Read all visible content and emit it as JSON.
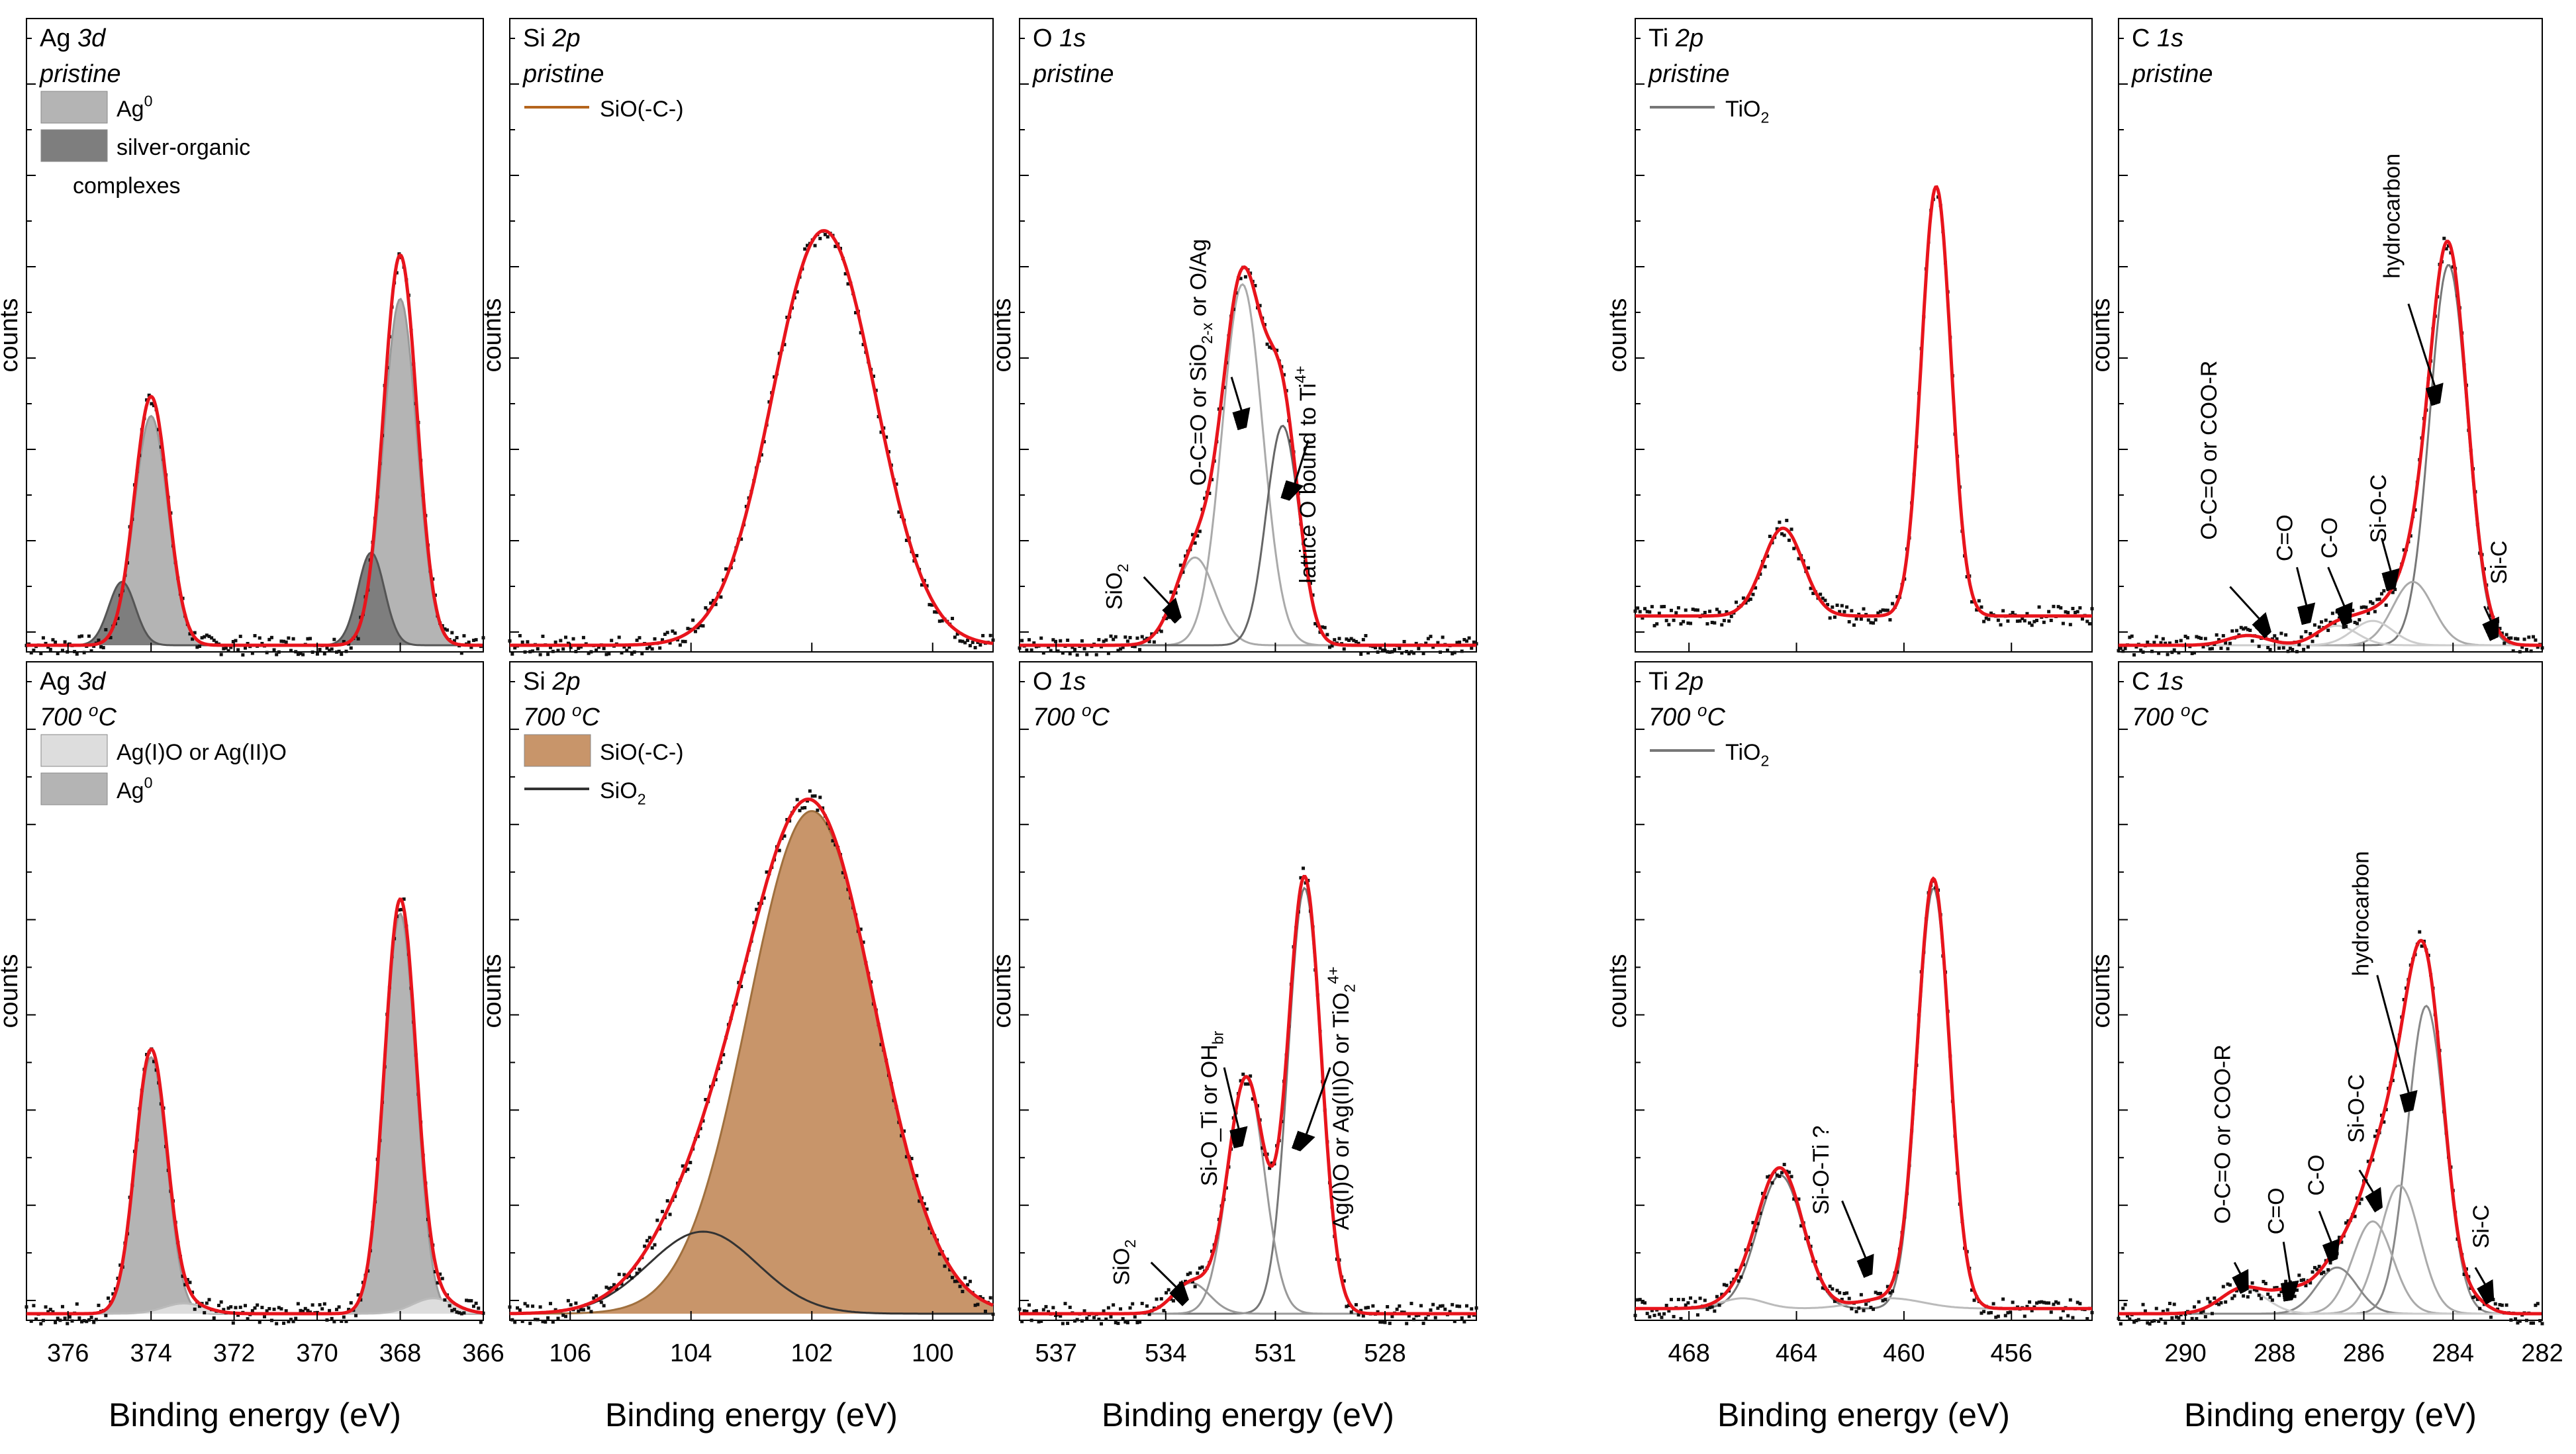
{
  "figure": {
    "x_axis_label": "Binding energy (eV)",
    "y_axis_label": "counts"
  },
  "chart_data": [
    {
      "id": "ag3d-pristine",
      "type": "line",
      "element": "Ag",
      "orbital": "3d",
      "condition": "pristine",
      "xlim": [
        377,
        366
      ],
      "ylim": [
        0,
        100
      ],
      "ticks": [
        "376",
        "374",
        "372",
        "370",
        "368",
        "366"
      ],
      "legend": [
        {
          "label": "Ag",
          "sup": "0",
          "sub": "",
          "rest": "",
          "style": "fill",
          "color": "#b4b4b4"
        },
        {
          "label": "silver-organic",
          "sup": "",
          "sub": "",
          "rest": "",
          "line2": "complexes",
          "style": "fill",
          "color": "#7e7e7e"
        }
      ],
      "envelope": {
        "baseline": 0,
        "peaks": [
          [
            374.0,
            51,
            0.4
          ],
          [
            368.0,
            80,
            0.4
          ]
        ]
      },
      "components": [
        {
          "name": "Ag0",
          "peaks": [
            [
              374.0,
              47,
              0.4
            ],
            [
              368.0,
              71,
              0.4
            ]
          ],
          "fill": "#b4b4b4",
          "stroke": "#999999"
        },
        {
          "name": "silver-organic complexes",
          "peaks": [
            [
              374.7,
              13,
              0.32
            ],
            [
              368.7,
              19,
              0.32
            ]
          ],
          "fill": "#7e7e7e",
          "stroke": "#555555"
        }
      ],
      "annotations": []
    },
    {
      "id": "si2p-pristine",
      "type": "line",
      "element": "Si",
      "orbital": "2p",
      "condition": "pristine",
      "xlim": [
        107,
        99
      ],
      "ylim": [
        0,
        100
      ],
      "ticks": [
        "106",
        "104",
        "102",
        "100"
      ],
      "legend": [
        {
          "label": "SiO(-C-)",
          "sup": "",
          "sub": "",
          "rest": "",
          "style": "line",
          "color": "#b5651d"
        }
      ],
      "envelope": {
        "baseline": 0,
        "peaks": [
          [
            101.8,
            85,
            0.85
          ]
        ]
      },
      "components": [],
      "annotations": []
    },
    {
      "id": "o1s-pristine",
      "type": "line",
      "element": "O",
      "orbital": "1s",
      "condition": "pristine",
      "xlim": [
        538,
        525.5
      ],
      "ylim": [
        0,
        100
      ],
      "ticks": [
        "537",
        "534",
        "531",
        "528"
      ],
      "legend": [],
      "envelope": {
        "baseline": 0,
        "peaks": [
          [
            531.9,
            74,
            0.55
          ],
          [
            533.2,
            18,
            0.55
          ],
          [
            530.8,
            45,
            0.45
          ]
        ]
      },
      "components": [
        {
          "name": "O-C=O",
          "peaks": [
            [
              531.9,
              74,
              0.55
            ]
          ],
          "fill": "none",
          "stroke": "#aaaaaa"
        },
        {
          "name": "SiO2",
          "peaks": [
            [
              533.2,
              18,
              0.55
            ]
          ],
          "fill": "none",
          "stroke": "#aaaaaa"
        },
        {
          "name": "lattice O",
          "peaks": [
            [
              530.8,
              45,
              0.45
            ]
          ],
          "fill": "none",
          "stroke": "#666666"
        }
      ],
      "annotations": [
        {
          "text": "O-C=O or SiO",
          "sub": "2-x",
          "sup": "",
          "rest": " or O/Ag",
          "rot": true,
          "x": 532.9,
          "y": 58,
          "ax": 532.2,
          "ay": 55,
          "bx": 531.8,
          "by": 45
        },
        {
          "text": "lattice O bound to Ti",
          "sub": "",
          "sup": "4+",
          "rest": "",
          "rot": true,
          "x": 529.9,
          "y": 35,
          "ax": 530.1,
          "ay": 42,
          "bx": 530.6,
          "by": 30
        },
        {
          "text": "SiO",
          "sub": "2",
          "sup": "",
          "rest": "",
          "rot": true,
          "x": 535.2,
          "y": 12,
          "ax": 534.6,
          "ay": 14,
          "bx": 533.6,
          "by": 6
        }
      ]
    },
    {
      "id": "ti2p-pristine",
      "type": "line",
      "element": "Ti",
      "orbital": "2p",
      "condition": "pristine",
      "xlim": [
        470,
        453
      ],
      "ylim": [
        0,
        100
      ],
      "ticks": [
        "468",
        "464",
        "460",
        "456"
      ],
      "legend": [
        {
          "label": "TiO",
          "sup": "",
          "sub": "2",
          "rest": "",
          "style": "line",
          "color": "#777777"
        }
      ],
      "envelope": {
        "baseline": 6,
        "peaks": [
          [
            458.8,
            88,
            0.55
          ],
          [
            464.5,
            18,
            0.75
          ]
        ]
      },
      "components": [],
      "annotations": []
    },
    {
      "id": "c1s-pristine",
      "type": "line",
      "element": "C",
      "orbital": "1s",
      "condition": "pristine",
      "xlim": [
        291.5,
        282
      ],
      "ylim": [
        0,
        100
      ],
      "ticks": [
        "290",
        "288",
        "286",
        "284",
        "282"
      ],
      "legend": [],
      "envelope": {
        "baseline": 0,
        "peaks": [
          [
            284.1,
            80,
            0.42
          ],
          [
            284.9,
            13,
            0.45
          ],
          [
            285.8,
            5,
            0.45
          ],
          [
            286.6,
            4,
            0.45
          ],
          [
            288.6,
            2,
            0.45
          ],
          [
            283.2,
            1,
            0.3
          ]
        ]
      },
      "components": [
        {
          "name": "hydrocarbon",
          "peaks": [
            [
              284.1,
              78,
              0.42
            ]
          ],
          "fill": "none",
          "stroke": "#777777"
        },
        {
          "name": "Si-O-C",
          "peaks": [
            [
              284.9,
              13,
              0.45
            ]
          ],
          "fill": "none",
          "stroke": "#aaaaaa"
        },
        {
          "name": "C-O",
          "peaks": [
            [
              285.8,
              5,
              0.45
            ]
          ],
          "fill": "none",
          "stroke": "#cccccc"
        },
        {
          "name": "C=O",
          "peaks": [
            [
              286.6,
              4,
              0.45
            ]
          ],
          "fill": "none",
          "stroke": "#cccccc"
        }
      ],
      "annotations": [
        {
          "text": "hydrocarbon",
          "sub": "",
          "sup": "",
          "rest": "",
          "rot": true,
          "x": 285.2,
          "y": 88,
          "ax": 285.0,
          "ay": 70,
          "bx": 284.3,
          "by": 50
        },
        {
          "text": "Si-O-C",
          "sub": "",
          "sup": "",
          "rest": "",
          "rot": true,
          "x": 285.5,
          "y": 28,
          "ax": 285.6,
          "ay": 22,
          "bx": 285.3,
          "by": 12
        },
        {
          "text": "C-O",
          "sub": "",
          "sup": "",
          "rest": "",
          "rot": true,
          "x": 286.6,
          "y": 22,
          "ax": 286.8,
          "ay": 16,
          "bx": 286.3,
          "by": 5
        },
        {
          "text": "C=O",
          "sub": "",
          "sup": "",
          "rest": "",
          "rot": true,
          "x": 287.6,
          "y": 22,
          "ax": 287.5,
          "ay": 16,
          "bx": 287.2,
          "by": 5
        },
        {
          "text": "O-C=O or COO-R",
          "sub": "",
          "sup": "",
          "rest": "",
          "rot": true,
          "x": 289.3,
          "y": 40,
          "ax": 289.0,
          "ay": 12,
          "bx": 288.1,
          "by": 3
        },
        {
          "text": "Si-C",
          "sub": "",
          "sup": "",
          "rest": "",
          "rot": true,
          "x": 282.8,
          "y": 17,
          "ax": 283.3,
          "ay": 8,
          "bx": 283.0,
          "by": 2
        }
      ]
    },
    {
      "id": "ag3d-700",
      "type": "line",
      "element": "Ag",
      "orbital": "3d",
      "condition": "700 ",
      "xlim": [
        377,
        366
      ],
      "ylim": [
        0,
        100
      ],
      "ticks": [
        "376",
        "374",
        "372",
        "370",
        "368",
        "366"
      ],
      "legend": [
        {
          "label": "Ag(I)O or Ag(II)O",
          "sup": "",
          "sub": "",
          "rest": "",
          "style": "fill",
          "color": "#dddddd"
        },
        {
          "label": "Ag",
          "sup": "0",
          "sub": "",
          "rest": "",
          "style": "fill",
          "color": "#b4b4b4"
        }
      ],
      "envelope": {
        "baseline": 0,
        "peaks": [
          [
            374.0,
            51,
            0.38
          ],
          [
            368.0,
            80,
            0.38
          ],
          [
            373.2,
            2,
            0.5
          ],
          [
            367.2,
            3,
            0.5
          ]
        ]
      },
      "components": [
        {
          "name": "Ag0",
          "peaks": [
            [
              374.0,
              50,
              0.38
            ],
            [
              368.0,
              78,
              0.38
            ]
          ],
          "fill": "#b4b4b4",
          "stroke": "#999999"
        },
        {
          "name": "Ag(I)O or Ag(II)O",
          "peaks": [
            [
              373.2,
              2,
              0.5
            ],
            [
              367.2,
              3,
              0.5
            ]
          ],
          "fill": "#dddddd",
          "stroke": "#bbbbbb"
        }
      ],
      "annotations": []
    },
    {
      "id": "si2p-700",
      "type": "line",
      "element": "Si",
      "orbital": "2p",
      "condition": "700 ",
      "xlim": [
        107,
        99
      ],
      "ylim": [
        0,
        100
      ],
      "ticks": [
        "106",
        "104",
        "102",
        "100"
      ],
      "legend": [
        {
          "label": "SiO(-C-)",
          "sup": "",
          "sub": "",
          "rest": "",
          "style": "fill",
          "color": "#c8956a"
        },
        {
          "label": "SiO",
          "sup": "",
          "sub": "2",
          "rest": "",
          "style": "line",
          "color": "#333333"
        }
      ],
      "envelope": {
        "baseline": 0,
        "peaks": [
          [
            102.0,
            98,
            1.05
          ],
          [
            103.8,
            16,
            0.9
          ]
        ]
      },
      "components": [
        {
          "name": "SiO(-C-)",
          "peaks": [
            [
              102.0,
              98,
              1.05
            ]
          ],
          "fill": "#c8956a",
          "stroke": "#a0703e"
        },
        {
          "name": "SiO2",
          "peaks": [
            [
              103.8,
              16,
              0.9
            ]
          ],
          "fill": "none",
          "stroke": "#333333"
        }
      ],
      "annotations": []
    },
    {
      "id": "o1s-700",
      "type": "line",
      "element": "O",
      "orbital": "1s",
      "condition": "700 ",
      "xlim": [
        538,
        525.5
      ],
      "ylim": [
        0,
        100
      ],
      "ticks": [
        "537",
        "534",
        "531",
        "528"
      ],
      "legend": [],
      "envelope": {
        "baseline": 0,
        "peaks": [
          [
            530.2,
            85,
            0.45
          ],
          [
            531.8,
            46,
            0.5
          ],
          [
            533.3,
            6,
            0.5
          ]
        ]
      },
      "components": [
        {
          "name": "Ag(I)O",
          "peaks": [
            [
              530.2,
              83,
              0.45
            ]
          ],
          "fill": "none",
          "stroke": "#777777"
        },
        {
          "name": "Si-O_Ti",
          "peaks": [
            [
              531.8,
              46,
              0.5
            ]
          ],
          "fill": "none",
          "stroke": "#999999"
        },
        {
          "name": "SiO2",
          "peaks": [
            [
              533.3,
              6,
              0.5
            ]
          ],
          "fill": "none",
          "stroke": "#999999"
        }
      ],
      "annotations": [
        {
          "text": "Si-O_Ti or OH",
          "sub": "br",
          "sup": "",
          "rest": "",
          "rot": true,
          "x": 532.6,
          "y": 40,
          "ax": 532.4,
          "ay": 48,
          "bx": 531.9,
          "by": 33
        },
        {
          "text": "Ag(I)O or Ag(II)O or TiO",
          "sub": "2",
          "sup": "4+",
          "rest": "",
          "rot": true,
          "x": 529.0,
          "y": 42,
          "ax": 529.5,
          "ay": 48,
          "bx": 530.3,
          "by": 32
        },
        {
          "text": "SiO",
          "sub": "2",
          "sup": "",
          "rest": "",
          "rot": true,
          "x": 535.0,
          "y": 10,
          "ax": 534.4,
          "ay": 10,
          "bx": 533.4,
          "by": 3
        }
      ]
    },
    {
      "id": "ti2p-700",
      "type": "line",
      "element": "Ti",
      "orbital": "2p",
      "condition": "700 ",
      "xlim": [
        470,
        453
      ],
      "ylim": [
        0,
        100
      ],
      "ticks": [
        "468",
        "464",
        "460",
        "456"
      ],
      "legend": [
        {
          "label": "TiO",
          "sup": "",
          "sub": "2",
          "rest": "",
          "style": "line",
          "color": "#777777"
        }
      ],
      "envelope": {
        "baseline": 1,
        "peaks": [
          [
            458.9,
            83,
            0.6
          ],
          [
            464.6,
            27,
            0.85
          ],
          [
            460.5,
            2,
            1.2
          ],
          [
            466.0,
            2,
            0.8
          ]
        ]
      },
      "components": [
        {
          "name": "TiO2",
          "peaks": [
            [
              458.9,
              82,
              0.6
            ],
            [
              464.6,
              26,
              0.85
            ]
          ],
          "fill": "none",
          "stroke": "#777777"
        },
        {
          "name": "Si-O-Ti",
          "peaks": [
            [
              460.5,
              2,
              1.2
            ],
            [
              466.0,
              2,
              0.8
            ]
          ],
          "fill": "none",
          "stroke": "#bbbbbb"
        }
      ],
      "annotations": [
        {
          "text": "Si-O-Ti ?",
          "sub": "",
          "sup": "",
          "rest": "",
          "rot": true,
          "x": 462.8,
          "y": 28,
          "ax": 462.3,
          "ay": 22,
          "bx": 461.2,
          "by": 8
        }
      ]
    },
    {
      "id": "c1s-700",
      "type": "line",
      "element": "C",
      "orbital": "1s",
      "condition": "700 ",
      "xlim": [
        291.5,
        282
      ],
      "ylim": [
        0,
        100
      ],
      "ticks": [
        "290",
        "288",
        "286",
        "284",
        "282"
      ],
      "legend": [],
      "envelope": {
        "baseline": 0,
        "peaks": [
          [
            284.6,
            60,
            0.42
          ],
          [
            285.2,
            25,
            0.45
          ],
          [
            285.8,
            18,
            0.45
          ],
          [
            286.6,
            9,
            0.45
          ],
          [
            287.6,
            4,
            0.45
          ],
          [
            288.7,
            5,
            0.5
          ],
          [
            283.5,
            2,
            0.3
          ]
        ]
      },
      "components": [
        {
          "name": "hydrocarbon",
          "peaks": [
            [
              284.6,
              60,
              0.42
            ]
          ],
          "fill": "none",
          "stroke": "#888888"
        },
        {
          "name": "Si-O-C",
          "peaks": [
            [
              285.2,
              25,
              0.45
            ]
          ],
          "fill": "none",
          "stroke": "#aaaaaa"
        },
        {
          "name": "C-O",
          "peaks": [
            [
              285.8,
              18,
              0.45
            ]
          ],
          "fill": "none",
          "stroke": "#aaaaaa"
        },
        {
          "name": "C=O",
          "peaks": [
            [
              286.6,
              9,
              0.45
            ]
          ],
          "fill": "none",
          "stroke": "#888888"
        },
        {
          "name": "O-C=O",
          "peaks": [
            [
              288.7,
              5,
              0.5
            ]
          ],
          "fill": "none",
          "stroke": "#cccccc"
        }
      ],
      "annotations": [
        {
          "text": "hydrocarbon",
          "sub": "",
          "sup": "",
          "rest": "",
          "rot": true,
          "x": 285.9,
          "y": 78,
          "ax": 285.7,
          "ay": 66,
          "bx": 284.9,
          "by": 40
        },
        {
          "text": "Si-O-C",
          "sub": "",
          "sup": "",
          "rest": "",
          "rot": true,
          "x": 286.0,
          "y": 40,
          "ax": 286.1,
          "ay": 28,
          "bx": 285.6,
          "by": 21
        },
        {
          "text": "C-O",
          "sub": "",
          "sup": "",
          "rest": "",
          "rot": true,
          "x": 286.9,
          "y": 27,
          "ax": 287.0,
          "ay": 20,
          "bx": 286.6,
          "by": 11
        },
        {
          "text": "C=O",
          "sub": "",
          "sup": "",
          "rest": "",
          "rot": true,
          "x": 287.8,
          "y": 20,
          "ax": 287.8,
          "ay": 14,
          "bx": 287.6,
          "by": 3
        },
        {
          "text": "O-C=O or COO-R",
          "sub": "",
          "sup": "",
          "rest": "",
          "rot": true,
          "x": 289.0,
          "y": 35,
          "ax": 288.9,
          "ay": 10,
          "bx": 288.6,
          "by": 5
        },
        {
          "text": "Si-C",
          "sub": "",
          "sup": "",
          "rest": "",
          "rot": true,
          "x": 283.2,
          "y": 17,
          "ax": 283.5,
          "ay": 9,
          "bx": 283.1,
          "by": 3
        }
      ]
    }
  ],
  "strings": {
    "degree_o": "o",
    "degree_c": "C"
  }
}
